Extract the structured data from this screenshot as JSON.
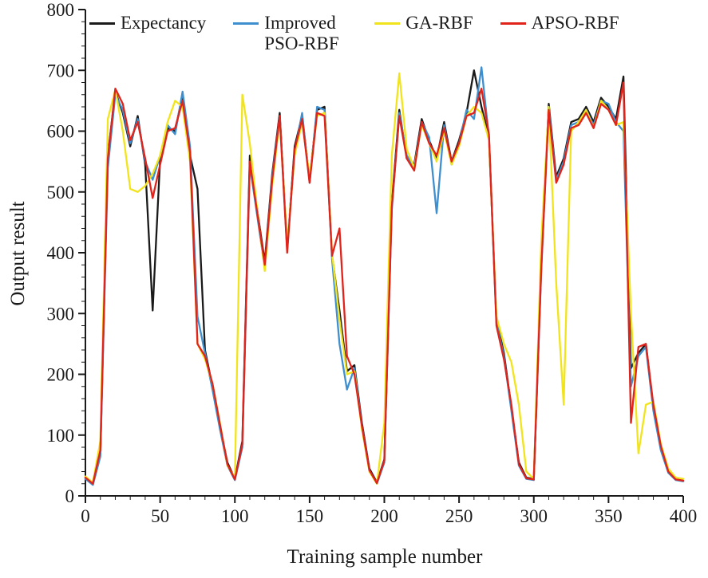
{
  "chart_data": {
    "type": "line",
    "title": "",
    "xlabel": "Training sample number",
    "ylabel": "Output result",
    "xlim": [
      0,
      400
    ],
    "ylim": [
      0,
      800
    ],
    "x_tick_step": 50,
    "y_tick_step": 100,
    "x_minor_step": 10,
    "y_minor_step": 20,
    "grid": false,
    "legend_position": "top-inside",
    "x": [
      0,
      5,
      10,
      15,
      20,
      25,
      30,
      35,
      40,
      45,
      50,
      55,
      60,
      65,
      70,
      75,
      80,
      85,
      90,
      95,
      100,
      105,
      110,
      115,
      120,
      125,
      130,
      135,
      140,
      145,
      150,
      155,
      160,
      165,
      170,
      175,
      180,
      185,
      190,
      195,
      200,
      205,
      210,
      215,
      220,
      225,
      230,
      235,
      240,
      245,
      250,
      255,
      260,
      265,
      270,
      275,
      280,
      285,
      290,
      295,
      300,
      305,
      310,
      315,
      320,
      325,
      330,
      335,
      340,
      345,
      350,
      355,
      360,
      365,
      370,
      375,
      380,
      385,
      390,
      395,
      400
    ],
    "series": [
      {
        "name": "Expectancy",
        "color": "#1a1a1a",
        "values": [
          30,
          20,
          70,
          560,
          665,
          630,
          575,
          625,
          545,
          305,
          555,
          605,
          600,
          660,
          560,
          505,
          240,
          180,
          115,
          55,
          28,
          90,
          560,
          470,
          385,
          530,
          630,
          405,
          575,
          625,
          520,
          635,
          640,
          395,
          305,
          205,
          215,
          120,
          45,
          22,
          60,
          480,
          635,
          555,
          545,
          620,
          585,
          555,
          615,
          550,
          585,
          630,
          700,
          640,
          590,
          290,
          235,
          145,
          55,
          30,
          28,
          380,
          645,
          525,
          555,
          615,
          620,
          640,
          615,
          655,
          640,
          620,
          690,
          210,
          235,
          250,
          145,
          80,
          40,
          28,
          25
        ]
      },
      {
        "name": "Improved PSO-RBF",
        "color": "#3f8fce",
        "values": [
          28,
          18,
          65,
          540,
          660,
          635,
          580,
          620,
          550,
          520,
          560,
          610,
          595,
          665,
          575,
          295,
          235,
          175,
          110,
          50,
          26,
          80,
          545,
          460,
          375,
          525,
          625,
          410,
          565,
          630,
          515,
          640,
          635,
          390,
          250,
          175,
          210,
          115,
          42,
          20,
          55,
          470,
          630,
          560,
          540,
          615,
          590,
          465,
          610,
          545,
          580,
          635,
          620,
          705,
          590,
          285,
          230,
          140,
          50,
          28,
          26,
          370,
          640,
          520,
          550,
          610,
          615,
          635,
          610,
          650,
          645,
          615,
          600,
          180,
          230,
          245,
          140,
          75,
          38,
          26,
          24
        ]
      },
      {
        "name": "GA-RBF",
        "color": "#f2e41c",
        "values": [
          32,
          22,
          90,
          620,
          668,
          600,
          505,
          500,
          510,
          530,
          560,
          615,
          650,
          640,
          550,
          250,
          225,
          185,
          120,
          50,
          30,
          660,
          580,
          470,
          370,
          510,
          620,
          415,
          560,
          615,
          525,
          625,
          630,
          400,
          290,
          200,
          205,
          110,
          40,
          20,
          120,
          560,
          695,
          570,
          540,
          610,
          580,
          550,
          600,
          545,
          575,
          625,
          640,
          630,
          585,
          295,
          250,
          220,
          150,
          40,
          28,
          420,
          640,
          350,
          150,
          600,
          615,
          635,
          605,
          650,
          635,
          610,
          615,
          300,
          70,
          150,
          155,
          85,
          45,
          30,
          28
        ]
      },
      {
        "name": "APSO-RBF",
        "color": "#e0241c",
        "values": [
          30,
          20,
          75,
          555,
          670,
          645,
          585,
          615,
          555,
          490,
          545,
          600,
          605,
          650,
          565,
          250,
          230,
          185,
          118,
          52,
          27,
          85,
          550,
          465,
          380,
          520,
          625,
          400,
          570,
          620,
          515,
          630,
          625,
          395,
          440,
          230,
          200,
          115,
          42,
          21,
          58,
          475,
          625,
          555,
          535,
          615,
          580,
          560,
          605,
          550,
          580,
          625,
          630,
          670,
          595,
          280,
          225,
          150,
          52,
          29,
          27,
          375,
          635,
          515,
          545,
          605,
          610,
          630,
          605,
          645,
          635,
          610,
          680,
          120,
          245,
          250,
          150,
          82,
          40,
          27,
          25
        ]
      }
    ]
  },
  "legend": {
    "items": [
      {
        "label": "Expectancy"
      },
      {
        "label": "Improved PSO-RBF"
      },
      {
        "label": "GA-RBF"
      },
      {
        "label": "APSO-RBF"
      }
    ]
  }
}
